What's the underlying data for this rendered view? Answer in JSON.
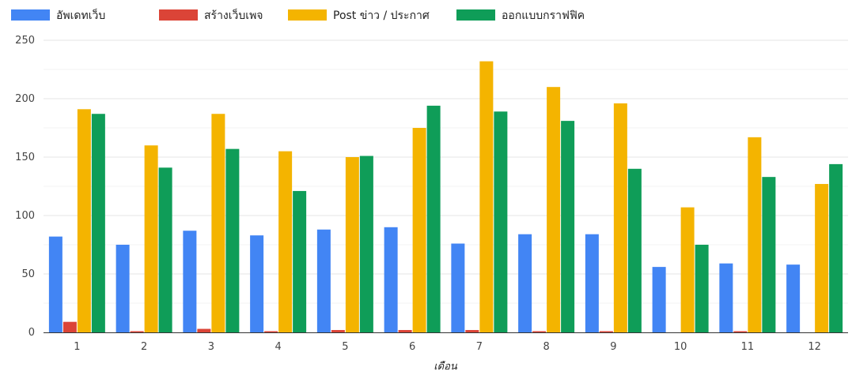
{
  "chart_data": {
    "type": "bar",
    "title": "",
    "xlabel": "เดือน",
    "ylabel": "",
    "categories": [
      "1",
      "2",
      "3",
      "4",
      "5",
      "6",
      "7",
      "8",
      "9",
      "10",
      "11",
      "12"
    ],
    "ylim": [
      0,
      250
    ],
    "yticks": [
      0,
      50,
      100,
      150,
      200,
      250
    ],
    "grid": true,
    "legend_position": "top-left",
    "series": [
      {
        "name": "อัพเดทเว็บ",
        "color": "#4285f4",
        "values": [
          82,
          75,
          87,
          83,
          88,
          90,
          76,
          84,
          84,
          56,
          59,
          58
        ]
      },
      {
        "name": "สร้างเว็บเพจ",
        "color": "#db4437",
        "values": [
          9,
          1,
          3,
          1,
          2,
          2,
          2,
          1,
          1,
          0,
          1,
          0
        ]
      },
      {
        "name": "Post ข่าว / ประกาศ",
        "color": "#f4b400",
        "values": [
          191,
          160,
          187,
          155,
          150,
          175,
          232,
          210,
          196,
          107,
          167,
          127
        ]
      },
      {
        "name": "ออกแบบกราฟฟิค",
        "color": "#0f9d58",
        "values": [
          187,
          141,
          157,
          121,
          151,
          194,
          189,
          181,
          140,
          75,
          133,
          144
        ]
      }
    ]
  }
}
